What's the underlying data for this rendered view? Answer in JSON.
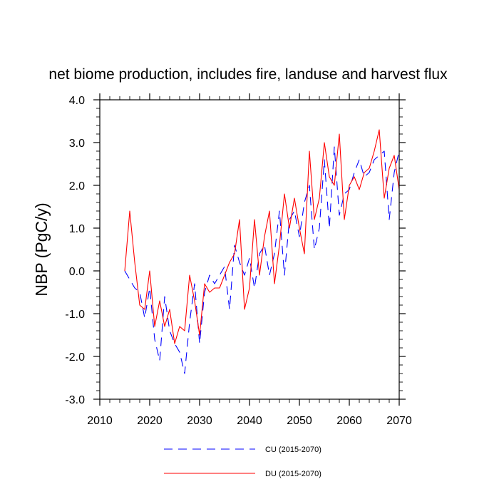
{
  "chart_data": {
    "type": "line",
    "title": "net biome production, includes fire, landuse and harvest flux",
    "xlabel": "",
    "ylabel": "NBP  (PgC/y)",
    "xlim": [
      2010,
      2070
    ],
    "ylim": [
      -3.0,
      4.0
    ],
    "xticks": [
      2010,
      2020,
      2030,
      2040,
      2050,
      2060,
      2070
    ],
    "xtick_labels": [
      "2010",
      "2020",
      "2030",
      "2040",
      "2050",
      "2060",
      "2070"
    ],
    "yticks": [
      -3.0,
      -2.0,
      -1.0,
      0.0,
      1.0,
      2.0,
      3.0,
      4.0
    ],
    "ytick_labels": [
      "-3.0",
      "-2.0",
      "-1.0",
      "0.0",
      "1.0",
      "2.0",
      "3.0",
      "4.0"
    ],
    "grid": false,
    "legend_position": "bottom",
    "x": [
      2015,
      2016,
      2017,
      2018,
      2019,
      2020,
      2021,
      2022,
      2023,
      2024,
      2025,
      2026,
      2027,
      2028,
      2029,
      2030,
      2031,
      2032,
      2033,
      2034,
      2035,
      2036,
      2037,
      2038,
      2039,
      2040,
      2041,
      2042,
      2043,
      2044,
      2045,
      2046,
      2047,
      2048,
      2049,
      2050,
      2051,
      2052,
      2053,
      2054,
      2055,
      2056,
      2057,
      2058,
      2059,
      2060,
      2061,
      2062,
      2063,
      2064,
      2065,
      2066,
      2067,
      2068,
      2069,
      2070
    ],
    "series": [
      {
        "name": "CU (2015-2070)",
        "color": "#0000ff",
        "dash": "dashed",
        "values": [
          0.0,
          -0.2,
          -0.4,
          -0.5,
          -1.1,
          -0.4,
          -1.6,
          -2.1,
          -0.6,
          -1.4,
          -1.7,
          -1.9,
          -2.4,
          -1.2,
          -0.3,
          -1.7,
          -0.5,
          -0.1,
          -0.3,
          -0.1,
          0.1,
          -0.9,
          0.6,
          0.2,
          -0.1,
          0.3,
          -0.4,
          0.4,
          0.6,
          -0.1,
          0.4,
          1.4,
          -0.1,
          1.2,
          1.4,
          0.8,
          1.6,
          2.0,
          0.5,
          1.0,
          2.6,
          1.0,
          2.9,
          1.3,
          1.8,
          1.9,
          2.3,
          2.6,
          2.2,
          2.3,
          2.6,
          2.7,
          2.8,
          1.2,
          2.3,
          2.8
        ]
      },
      {
        "name": "DU (2015-2070)",
        "color": "#ff0000",
        "dash": "solid",
        "values": [
          0.0,
          1.4,
          0.2,
          -0.8,
          -0.9,
          0.0,
          -1.3,
          -0.7,
          -1.3,
          -0.9,
          -1.7,
          -1.3,
          -1.4,
          -0.1,
          -0.7,
          -1.5,
          -0.3,
          -0.5,
          -0.4,
          -0.4,
          -0.1,
          0.2,
          0.4,
          1.2,
          -0.9,
          -0.4,
          1.2,
          -0.1,
          0.8,
          1.4,
          -0.3,
          0.6,
          1.8,
          1.0,
          1.7,
          1.0,
          0.4,
          2.8,
          1.2,
          1.7,
          3.0,
          2.2,
          2.0,
          3.2,
          1.2,
          2.0,
          2.2,
          1.9,
          2.3,
          2.4,
          2.8,
          3.3,
          1.7,
          2.4,
          2.7,
          1.9
        ]
      }
    ]
  }
}
